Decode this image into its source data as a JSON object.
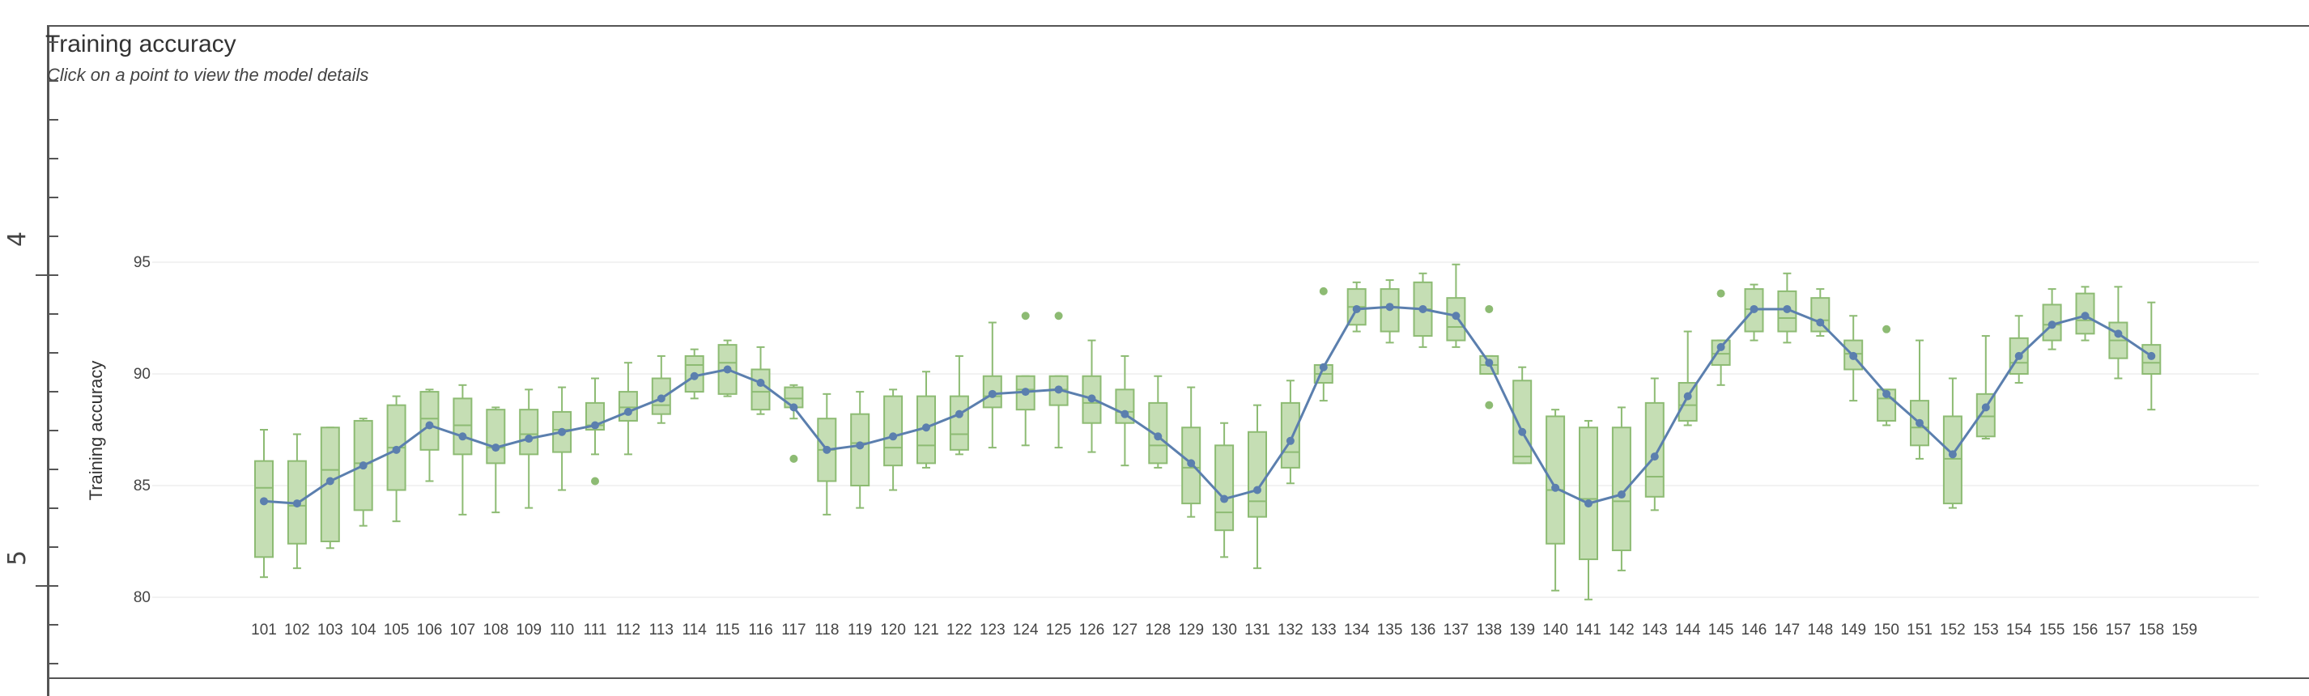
{
  "header": {
    "title": "Training accuracy",
    "subtitle": "Click on a point to view the model details"
  },
  "ruler": {
    "marks": [
      "4",
      "5"
    ]
  },
  "chart_data": {
    "type": "box",
    "title": "Training accuracy",
    "subtitle": "Click on a point to view the model details",
    "ylabel": "Training accuracy",
    "xlabel": "",
    "ylim": [
      79.5,
      96.5
    ],
    "yticks": [
      80,
      85,
      90,
      95
    ],
    "grid": true,
    "colors": {
      "box_fill": "#c5deb4",
      "box_stroke": "#8dbb73",
      "line": "#5b7fae",
      "grid": "#eeeeee"
    },
    "categories": [
      "101",
      "102",
      "103",
      "104",
      "105",
      "106",
      "107",
      "108",
      "109",
      "110",
      "111",
      "112",
      "113",
      "114",
      "115",
      "116",
      "117",
      "118",
      "119",
      "120",
      "121",
      "122",
      "123",
      "124",
      "125",
      "126",
      "127",
      "128",
      "129",
      "130",
      "131",
      "132",
      "133",
      "134",
      "135",
      "136",
      "137",
      "138",
      "139",
      "140",
      "141",
      "142",
      "143",
      "144",
      "145",
      "146",
      "147",
      "148",
      "149",
      "150",
      "151",
      "152",
      "153",
      "154",
      "155",
      "156",
      "157",
      "158",
      "159"
    ],
    "boxes": [
      {
        "min": 80.9,
        "q1": 81.8,
        "median": 84.9,
        "q3": 86.1,
        "max": 87.5
      },
      {
        "min": 81.3,
        "q1": 82.4,
        "median": 84.1,
        "q3": 86.1,
        "max": 87.3
      },
      {
        "min": 82.2,
        "q1": 82.5,
        "median": 85.7,
        "q3": 87.6,
        "max": 87.6
      },
      {
        "min": 83.2,
        "q1": 83.9,
        "median": 86.0,
        "q3": 87.9,
        "max": 88.0
      },
      {
        "min": 83.4,
        "q1": 84.8,
        "median": 86.7,
        "q3": 88.6,
        "max": 89.0
      },
      {
        "min": 85.2,
        "q1": 86.6,
        "median": 88.0,
        "q3": 89.2,
        "max": 89.3
      },
      {
        "min": 83.7,
        "q1": 86.4,
        "median": 87.7,
        "q3": 88.9,
        "max": 89.5
      },
      {
        "min": 83.8,
        "q1": 86.0,
        "median": 86.7,
        "q3": 88.4,
        "max": 88.5
      },
      {
        "min": 84.0,
        "q1": 86.4,
        "median": 87.3,
        "q3": 88.4,
        "max": 89.3
      },
      {
        "min": 84.8,
        "q1": 86.5,
        "median": 87.5,
        "q3": 88.3,
        "max": 89.4
      },
      {
        "min": 86.4,
        "q1": 87.5,
        "median": 87.7,
        "q3": 88.7,
        "max": 89.8,
        "outliers": [
          85.2
        ]
      },
      {
        "min": 86.4,
        "q1": 87.9,
        "median": 88.5,
        "q3": 89.2,
        "max": 90.5
      },
      {
        "min": 87.8,
        "q1": 88.2,
        "median": 88.6,
        "q3": 89.8,
        "max": 90.8
      },
      {
        "min": 88.9,
        "q1": 89.2,
        "median": 90.4,
        "q3": 90.8,
        "max": 91.1
      },
      {
        "min": 89.0,
        "q1": 89.1,
        "median": 90.5,
        "q3": 91.3,
        "max": 91.5
      },
      {
        "min": 88.2,
        "q1": 88.4,
        "median": 89.2,
        "q3": 90.2,
        "max": 91.2
      },
      {
        "min": 88.0,
        "q1": 88.5,
        "median": 88.9,
        "q3": 89.4,
        "max": 89.5,
        "outliers": [
          86.2
        ]
      },
      {
        "min": 83.7,
        "q1": 85.2,
        "median": 86.6,
        "q3": 88.0,
        "max": 89.1
      },
      {
        "min": 84.0,
        "q1": 85.0,
        "median": 86.9,
        "q3": 88.2,
        "max": 89.2
      },
      {
        "min": 84.8,
        "q1": 85.9,
        "median": 86.7,
        "q3": 89.0,
        "max": 89.3
      },
      {
        "min": 85.8,
        "q1": 86.0,
        "median": 86.8,
        "q3": 89.0,
        "max": 90.1
      },
      {
        "min": 86.4,
        "q1": 86.6,
        "median": 87.3,
        "q3": 89.0,
        "max": 90.8
      },
      {
        "min": 86.7,
        "q1": 88.5,
        "median": 89.0,
        "q3": 89.9,
        "max": 92.3
      },
      {
        "min": 86.8,
        "q1": 88.4,
        "median": 89.3,
        "q3": 89.9,
        "max": 89.9,
        "outliers": [
          92.6
        ]
      },
      {
        "min": 86.7,
        "q1": 88.6,
        "median": 89.3,
        "q3": 89.9,
        "max": 89.9,
        "outliers": [
          92.6
        ]
      },
      {
        "min": 86.5,
        "q1": 87.8,
        "median": 88.7,
        "q3": 89.9,
        "max": 91.5
      },
      {
        "min": 85.9,
        "q1": 87.8,
        "median": 88.3,
        "q3": 89.3,
        "max": 90.8
      },
      {
        "min": 85.8,
        "q1": 86.0,
        "median": 86.8,
        "q3": 88.7,
        "max": 89.9
      },
      {
        "min": 83.6,
        "q1": 84.2,
        "median": 85.8,
        "q3": 87.6,
        "max": 89.4
      },
      {
        "min": 81.8,
        "q1": 83.0,
        "median": 83.8,
        "q3": 86.8,
        "max": 87.8
      },
      {
        "min": 81.3,
        "q1": 83.6,
        "median": 84.3,
        "q3": 87.4,
        "max": 88.6
      },
      {
        "min": 85.1,
        "q1": 85.8,
        "median": 86.5,
        "q3": 88.7,
        "max": 89.7
      },
      {
        "min": 88.8,
        "q1": 89.6,
        "median": 90.0,
        "q3": 90.4,
        "max": 90.4,
        "outliers": [
          93.7
        ]
      },
      {
        "min": 91.9,
        "q1": 92.2,
        "median": 93.0,
        "q3": 93.8,
        "max": 94.1
      },
      {
        "min": 91.4,
        "q1": 91.9,
        "median": 93.0,
        "q3": 93.8,
        "max": 94.2
      },
      {
        "min": 91.2,
        "q1": 91.7,
        "median": 92.9,
        "q3": 94.1,
        "max": 94.5
      },
      {
        "min": 91.2,
        "q1": 91.5,
        "median": 92.1,
        "q3": 93.4,
        "max": 94.9
      },
      {
        "min": 90.0,
        "q1": 90.0,
        "median": 90.4,
        "q3": 90.8,
        "max": 90.8,
        "outliers": [
          92.9,
          88.6
        ]
      },
      {
        "min": 86.0,
        "q1": 86.0,
        "median": 86.3,
        "q3": 89.7,
        "max": 90.3
      },
      {
        "min": 80.3,
        "q1": 82.4,
        "median": 84.8,
        "q3": 88.1,
        "max": 88.4
      },
      {
        "min": 79.9,
        "q1": 81.7,
        "median": 84.4,
        "q3": 87.6,
        "max": 87.9
      },
      {
        "min": 81.2,
        "q1": 82.1,
        "median": 84.3,
        "q3": 87.6,
        "max": 88.5
      },
      {
        "min": 83.9,
        "q1": 84.5,
        "median": 85.4,
        "q3": 88.7,
        "max": 89.8
      },
      {
        "min": 87.7,
        "q1": 87.9,
        "median": 88.6,
        "q3": 89.6,
        "max": 91.9
      },
      {
        "min": 89.5,
        "q1": 90.4,
        "median": 90.9,
        "q3": 91.5,
        "max": 91.5,
        "outliers": [
          93.6
        ]
      },
      {
        "min": 91.5,
        "q1": 91.9,
        "median": 92.9,
        "q3": 93.8,
        "max": 94.0
      },
      {
        "min": 91.4,
        "q1": 91.9,
        "median": 92.5,
        "q3": 93.7,
        "max": 94.5
      },
      {
        "min": 91.7,
        "q1": 91.9,
        "median": 92.4,
        "q3": 93.4,
        "max": 93.8
      },
      {
        "min": 88.8,
        "q1": 90.2,
        "median": 90.9,
        "q3": 91.5,
        "max": 92.6
      },
      {
        "min": 87.7,
        "q1": 87.9,
        "median": 88.9,
        "q3": 89.3,
        "max": 89.3,
        "outliers": [
          92.0
        ]
      },
      {
        "min": 86.2,
        "q1": 86.8,
        "median": 87.6,
        "q3": 88.8,
        "max": 91.5
      },
      {
        "min": 84.0,
        "q1": 84.2,
        "median": 86.2,
        "q3": 88.1,
        "max": 89.8
      },
      {
        "min": 87.1,
        "q1": 87.2,
        "median": 88.1,
        "q3": 89.1,
        "max": 91.7
      },
      {
        "min": 89.6,
        "q1": 90.0,
        "median": 90.5,
        "q3": 91.6,
        "max": 92.6
      },
      {
        "min": 91.1,
        "q1": 91.5,
        "median": 92.2,
        "q3": 93.1,
        "max": 93.8
      },
      {
        "min": 91.5,
        "q1": 91.8,
        "median": 92.4,
        "q3": 93.6,
        "max": 93.9
      },
      {
        "min": 89.8,
        "q1": 90.7,
        "median": 91.5,
        "q3": 92.3,
        "max": 93.9
      },
      {
        "min": 88.4,
        "q1": 90.0,
        "median": 90.5,
        "q3": 91.3,
        "max": 93.2
      },
      null
    ],
    "series": [
      {
        "values": [
          84.3,
          84.2,
          85.2,
          85.9,
          86.6,
          87.7,
          87.2,
          86.7,
          87.1,
          87.4,
          87.7,
          88.3,
          88.9,
          89.9,
          90.2,
          89.6,
          88.5,
          86.6,
          86.8,
          87.2,
          87.6,
          88.2,
          89.1,
          89.2,
          89.3,
          88.9,
          88.2,
          87.2,
          86.0,
          84.4,
          84.8,
          87.0,
          90.3,
          92.9,
          93.0,
          92.9,
          92.6,
          90.5,
          87.4,
          84.9,
          84.2,
          84.6,
          86.3,
          89.0,
          91.2,
          92.9,
          92.9,
          92.3,
          90.8,
          89.1,
          87.8,
          86.4,
          88.5,
          90.8,
          92.2,
          92.6,
          91.8,
          90.8,
          null
        ]
      }
    ]
  }
}
